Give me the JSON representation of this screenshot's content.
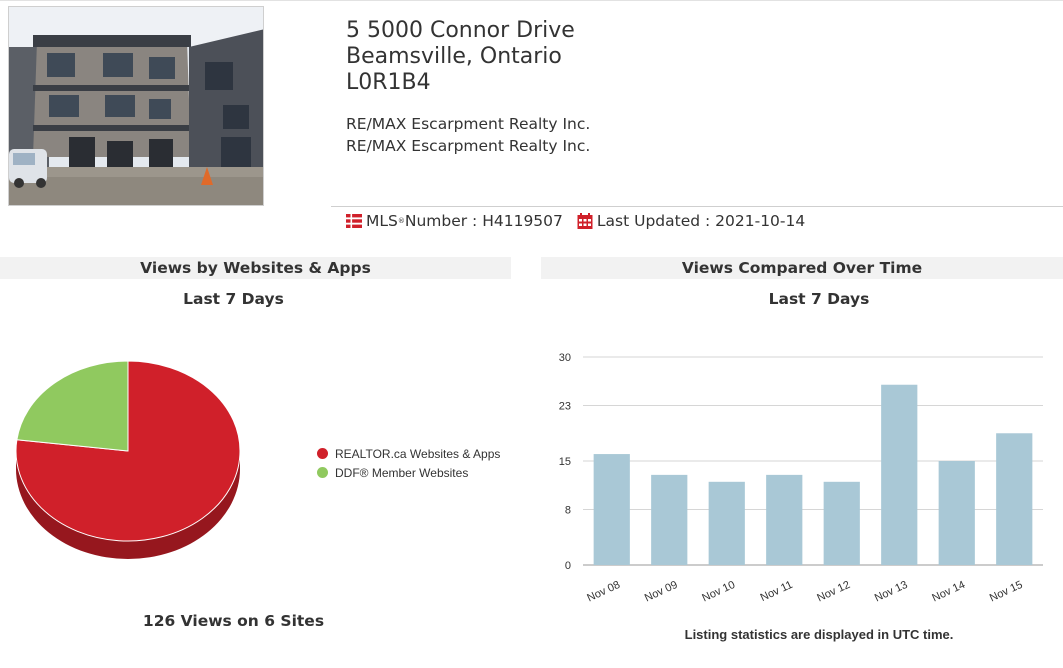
{
  "listing": {
    "address_line1": "5 5000 Connor Drive",
    "address_line2": "Beamsville, Ontario",
    "address_line3": "L0R1B4",
    "brokerage_1": "RE/MAX Escarpment Realty Inc.",
    "brokerage_2": "RE/MAX Escarpment Realty Inc.",
    "mls_label": "MLS",
    "mls_reg": "®",
    "mls_number_text": " Number : H4119507",
    "last_updated_text": "Last Updated : 2021-10-14",
    "icons": {
      "mls": "mls-list-icon",
      "calendar": "calendar-icon"
    },
    "accent_color": "#d0202a"
  },
  "panels": {
    "sites": {
      "title": "Views by Websites & Apps",
      "subtitle": "Last 7 Days",
      "total": "126 Views on 6 Sites"
    },
    "time": {
      "title": "Views Compared Over Time",
      "subtitle": "Last 7 Days",
      "note": "Listing statistics are displayed in UTC time."
    }
  },
  "chart_data": [
    {
      "type": "pie",
      "labels": [
        "REALTOR.ca Websites & Apps",
        "DDF® Member Websites"
      ],
      "values": [
        97,
        29
      ],
      "colors": [
        "#d0202a",
        "#90c95f"
      ],
      "legend": "right"
    },
    {
      "type": "bar",
      "categories": [
        "Nov 08",
        "Nov 09",
        "Nov 10",
        "Nov 11",
        "Nov 12",
        "Nov 13",
        "Nov 14",
        "Nov 15"
      ],
      "values": [
        16,
        13,
        12,
        13,
        12,
        26,
        15,
        19
      ],
      "ylim": [
        0,
        30
      ],
      "yticks": [
        "0",
        "8",
        "15",
        "23",
        "30"
      ],
      "color": "#a9c8d6",
      "grid": true
    }
  ]
}
